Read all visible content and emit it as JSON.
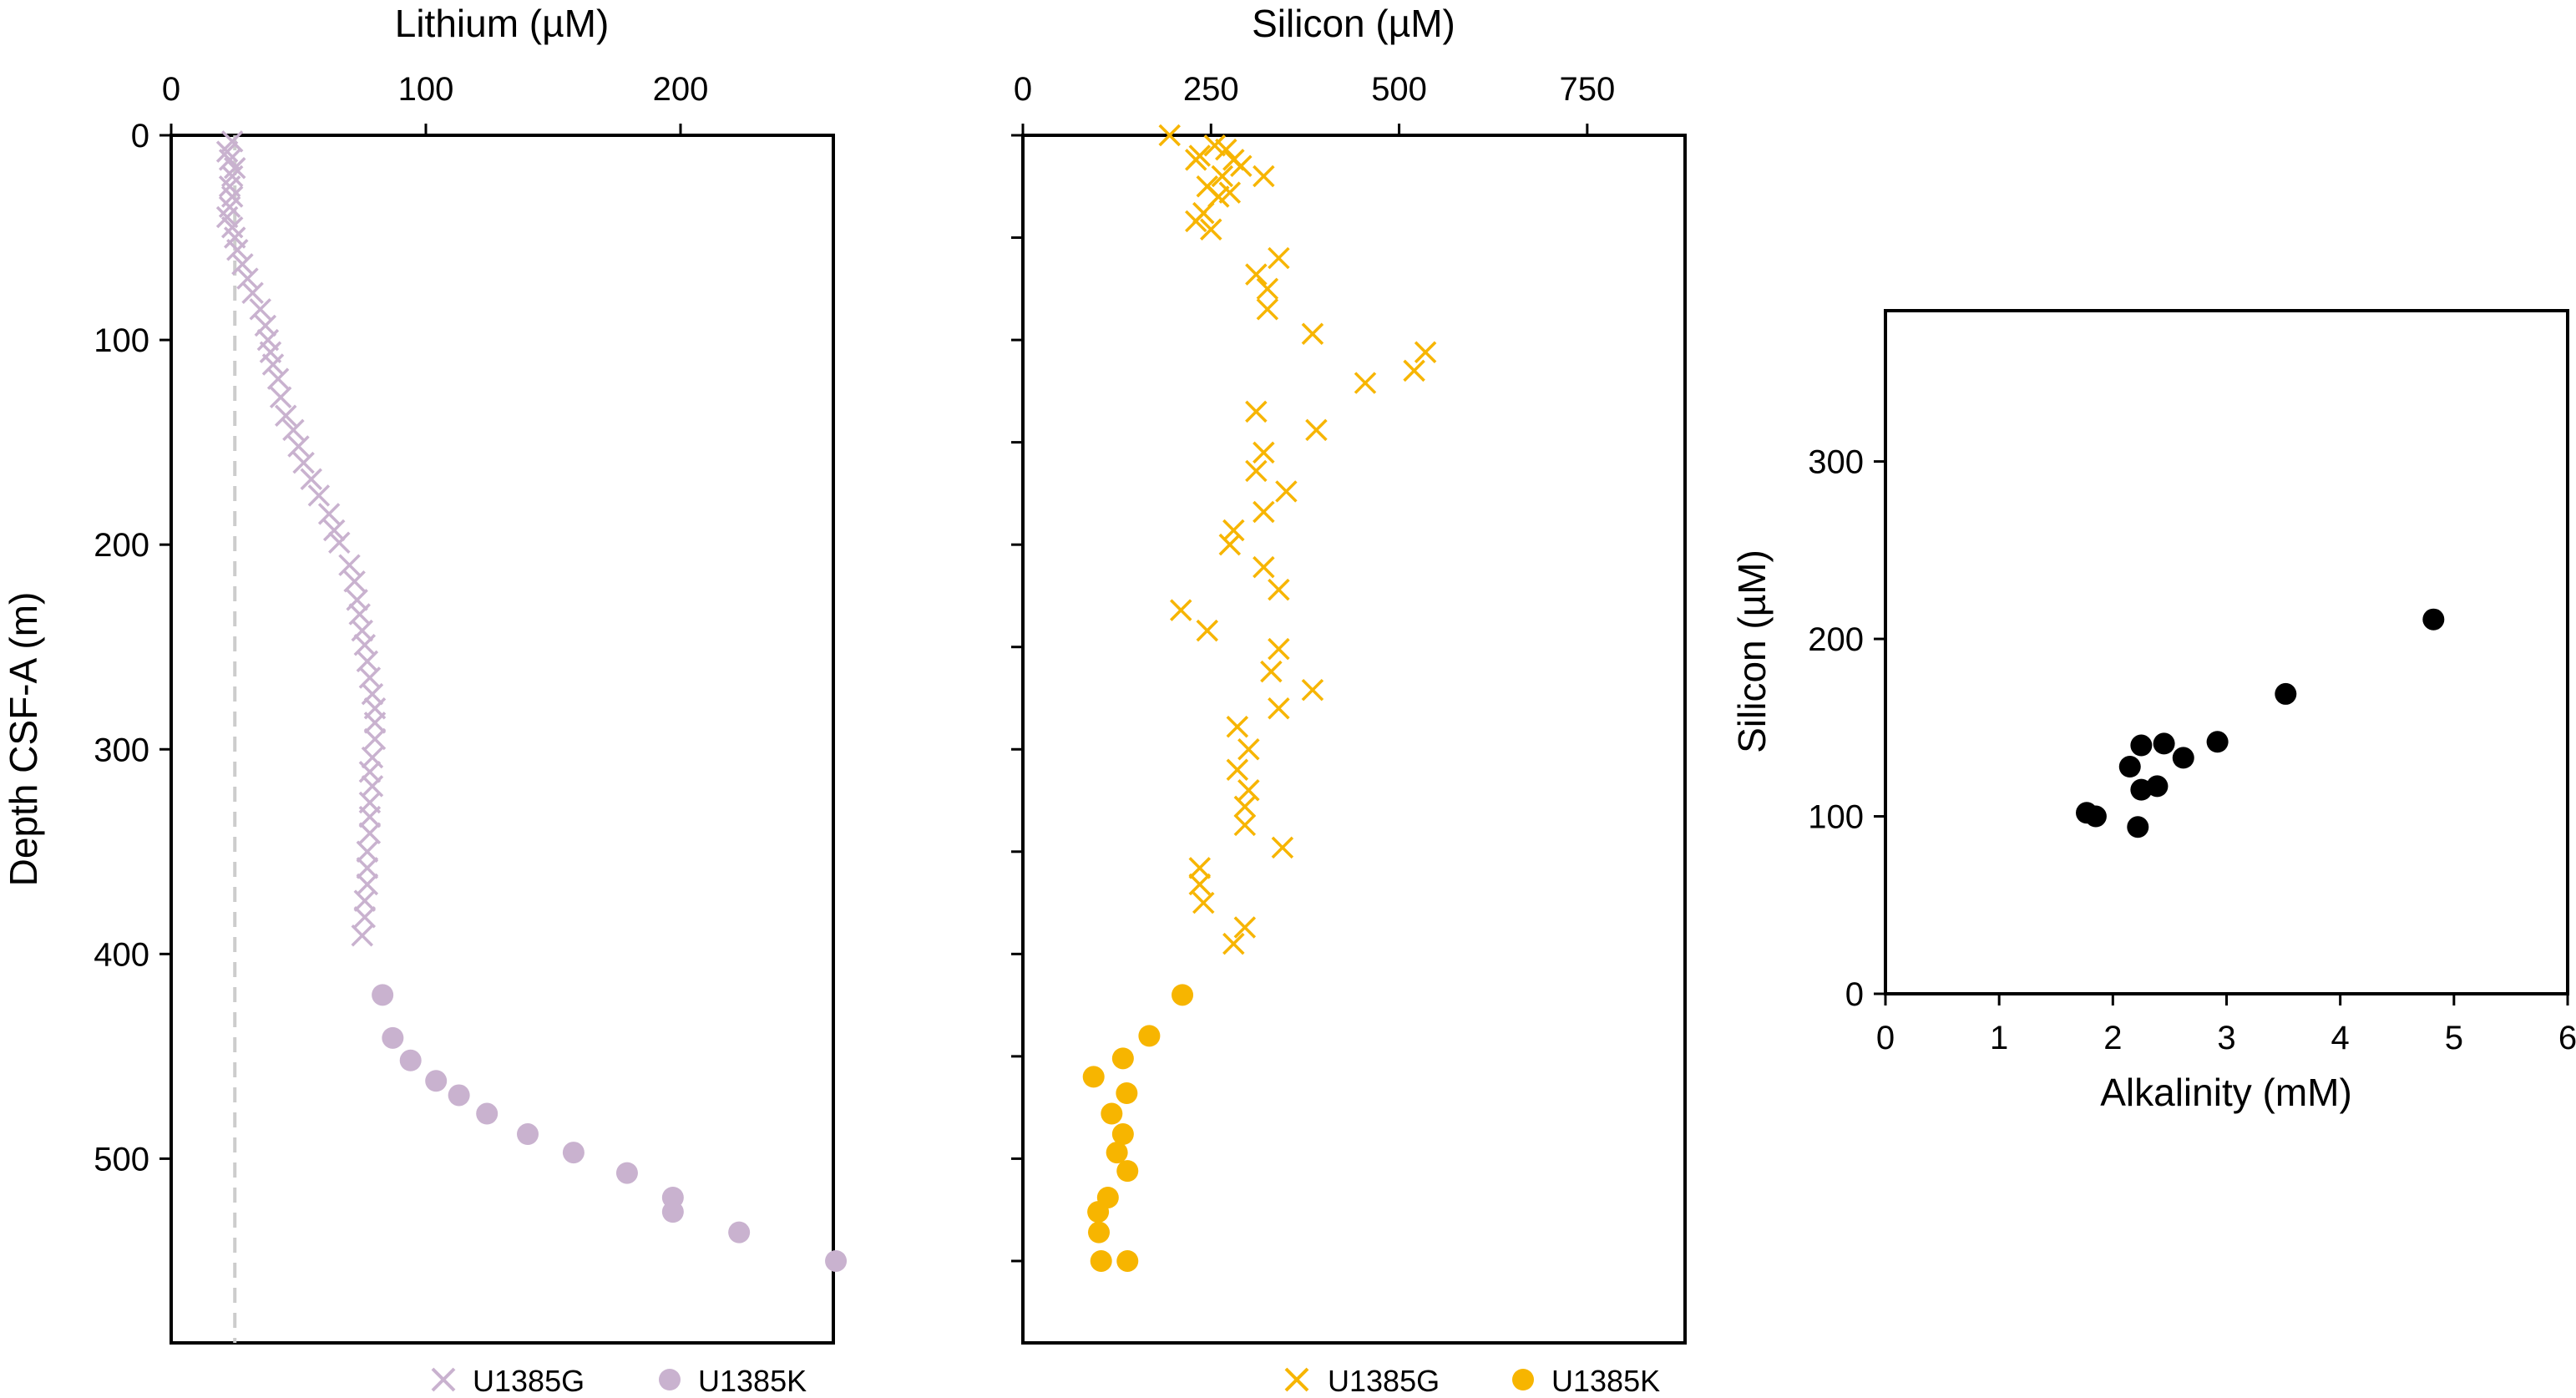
{
  "colors": {
    "lithium": "#c9b2cf",
    "silicon": "#f7b500",
    "scatter": "#000000",
    "seawater_line": "#cccccc"
  },
  "chart_data": [
    {
      "type": "scatter",
      "title": "",
      "xlabel": "Lithium (µM)",
      "ylabel": "Depth CSF-A (m)",
      "xlim": [
        0,
        260
      ],
      "ylim": [
        590,
        0
      ],
      "x_ticks": [
        0,
        100,
        200
      ],
      "x_tick_labels": [
        "0",
        "100",
        "200"
      ],
      "y_ticks": [
        0,
        100,
        200,
        300,
        400,
        500
      ],
      "y_tick_labels": [
        "0",
        "100",
        "200",
        "300",
        "400",
        "500"
      ],
      "reference_line": {
        "style": "dashed",
        "x": 25
      },
      "legend_position": "bottom",
      "series": [
        {
          "name": "U1385G",
          "marker": "x",
          "x": [
            24,
            22,
            23,
            25,
            24,
            23,
            24,
            23,
            22,
            24,
            25,
            26,
            28,
            30,
            32,
            35,
            37,
            38,
            39,
            40,
            42,
            43,
            45,
            48,
            50,
            52,
            55,
            58,
            62,
            64,
            66,
            70,
            72,
            73,
            74,
            75,
            76,
            77,
            78,
            79,
            80,
            80,
            80,
            79,
            78,
            79,
            78,
            78,
            78,
            77,
            77,
            77,
            76,
            76,
            75
          ],
          "y": [
            3,
            8,
            12,
            16,
            20,
            25,
            30,
            35,
            40,
            45,
            50,
            56,
            63,
            70,
            77,
            85,
            93,
            100,
            106,
            112,
            119,
            128,
            137,
            144,
            152,
            160,
            168,
            176,
            185,
            193,
            199,
            210,
            218,
            227,
            234,
            242,
            249,
            257,
            265,
            273,
            280,
            287,
            295,
            304,
            311,
            318,
            326,
            333,
            341,
            350,
            358,
            366,
            374,
            382,
            391
          ]
        },
        {
          "name": "U1385K",
          "marker": "circle",
          "x": [
            83,
            87,
            94,
            104,
            113,
            124,
            140,
            158,
            179,
            197,
            197,
            223,
            261
          ],
          "y": [
            420,
            441,
            452,
            462,
            469,
            478,
            488,
            497,
            507,
            519,
            526,
            536,
            550
          ]
        }
      ]
    },
    {
      "type": "scatter",
      "title": "",
      "xlabel": "Silicon (µM)",
      "ylabel": "",
      "xlim": [
        0,
        880
      ],
      "ylim": [
        590,
        0
      ],
      "x_ticks": [
        0,
        250,
        500,
        750
      ],
      "x_tick_labels": [
        "0",
        "250",
        "500",
        "750"
      ],
      "y_ticks": [
        0,
        50,
        100,
        150,
        200,
        250,
        300,
        350,
        400,
        450,
        500,
        550
      ],
      "legend_position": "bottom",
      "series": [
        {
          "name": "U1385G",
          "marker": "x",
          "x": [
            195,
            255,
            270,
            235,
            280,
            290,
            230,
            265,
            245,
            320,
            275,
            260,
            240,
            230,
            250,
            340,
            310,
            325,
            325,
            385,
            535,
            520,
            455,
            310,
            390,
            320,
            310,
            350,
            320,
            280,
            275,
            320,
            340,
            210,
            245,
            340,
            330,
            385,
            340,
            285,
            300,
            285,
            300,
            295,
            295,
            345,
            235,
            235,
            240,
            295,
            280
          ],
          "y": [
            0,
            5,
            7,
            10,
            12,
            15,
            12,
            20,
            25,
            20,
            28,
            30,
            38,
            42,
            46,
            60,
            68,
            75,
            85,
            97,
            106,
            115,
            121,
            135,
            144,
            155,
            164,
            174,
            184,
            193,
            200,
            211,
            222,
            232,
            242,
            251,
            262,
            271,
            280,
            289,
            300,
            310,
            320,
            328,
            337,
            348,
            358,
            366,
            375,
            387,
            395
          ]
        },
        {
          "name": "U1385K",
          "marker": "circle",
          "x": [
            212,
            168,
            133,
            94,
            138,
            118,
            133,
            125,
            139,
            113,
            100,
            101,
            139,
            104
          ],
          "y": [
            420,
            440,
            451,
            460,
            468,
            478,
            488,
            497,
            506,
            519,
            526,
            536,
            550,
            550
          ]
        }
      ]
    },
    {
      "type": "scatter",
      "title": "",
      "xlabel": "Alkalinity (mM)",
      "ylabel": "Silicon (µM)",
      "xlim": [
        0,
        6
      ],
      "ylim": [
        0,
        385
      ],
      "x_ticks": [
        0,
        1,
        2,
        3,
        4,
        5,
        6
      ],
      "x_tick_labels": [
        "0",
        "1",
        "2",
        "3",
        "4",
        "5",
        "6"
      ],
      "y_ticks": [
        0,
        100,
        200,
        300
      ],
      "y_tick_labels": [
        "0",
        "100",
        "200",
        "300"
      ],
      "series": [
        {
          "name": "",
          "marker": "circle",
          "x": [
            1.77,
            1.85,
            2.22,
            2.25,
            2.39,
            2.15,
            2.25,
            2.45,
            2.62,
            2.92,
            3.52,
            4.82
          ],
          "y": [
            102,
            100,
            94,
            115,
            117,
            128,
            140,
            141,
            133,
            142,
            169,
            211
          ]
        }
      ]
    }
  ]
}
